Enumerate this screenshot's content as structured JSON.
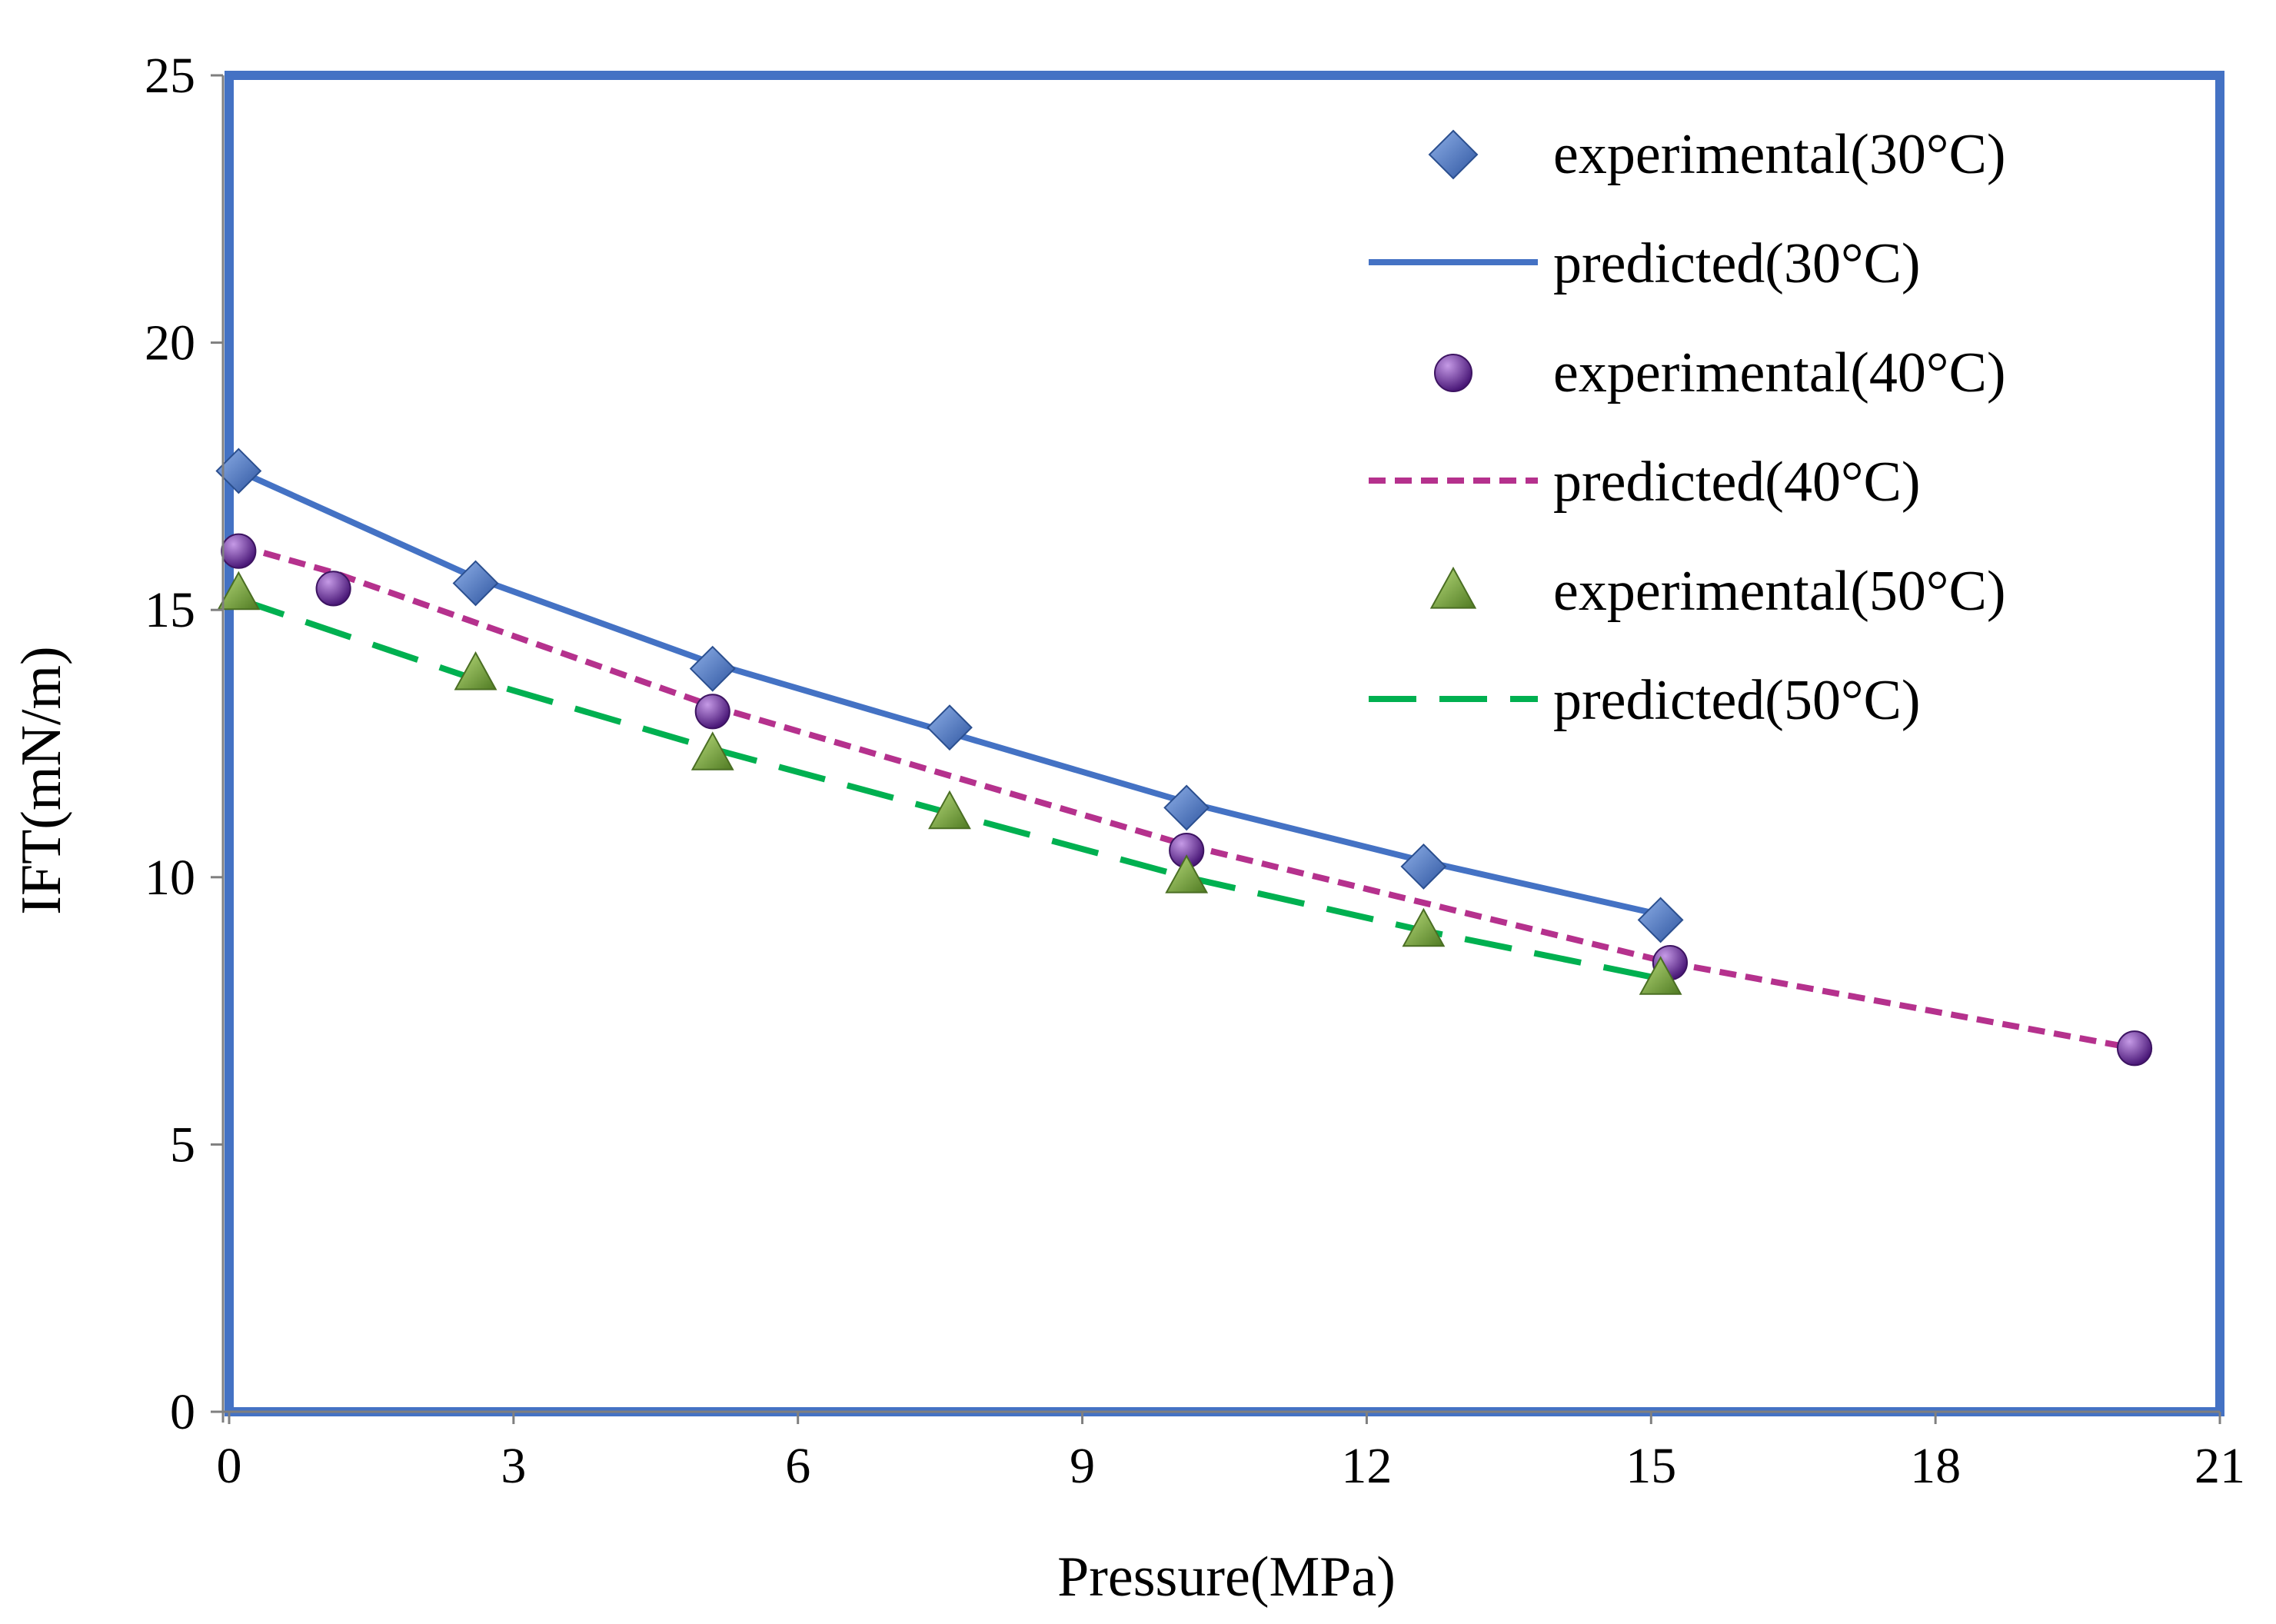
{
  "chart_data": {
    "type": "line",
    "title": "",
    "xlabel": "Pressure(MPa)",
    "ylabel": "IFT(mN/m)",
    "xlim": [
      0,
      21
    ],
    "ylim": [
      0,
      25
    ],
    "x_ticks": [
      0,
      3,
      6,
      9,
      12,
      15,
      18,
      21
    ],
    "y_ticks": [
      0,
      5,
      10,
      15,
      20,
      25
    ],
    "x_tick_labels": [
      "0",
      "3",
      "6",
      "9",
      "12",
      "15",
      "18",
      "21"
    ],
    "y_tick_labels": [
      "0",
      "5",
      "10",
      "15",
      "20",
      "25"
    ],
    "grid": false,
    "legend_position": "top-right",
    "series": [
      {
        "name": "experimental(30°C)",
        "kind": "markers",
        "marker": "diamond",
        "color": "#4472C4",
        "x": [
          0.1,
          2.6,
          5.1,
          7.6,
          10.1,
          12.6,
          15.1
        ],
        "y": [
          17.6,
          15.5,
          13.9,
          12.8,
          11.3,
          10.2,
          9.2
        ]
      },
      {
        "name": "predicted(30°C)",
        "kind": "line",
        "dash": "solid",
        "color": "#4472C4",
        "x": [
          0.1,
          2.6,
          5.1,
          7.6,
          10.1,
          12.6,
          15.1
        ],
        "y": [
          17.6,
          15.6,
          14.0,
          12.7,
          11.4,
          10.3,
          9.3
        ]
      },
      {
        "name": "experimental(40°C)",
        "kind": "markers",
        "marker": "circle",
        "color": "#7030A0",
        "x": [
          0.1,
          1.1,
          5.1,
          10.1,
          15.2,
          20.1
        ],
        "y": [
          16.1,
          15.4,
          13.1,
          10.5,
          8.4,
          6.8
        ]
      },
      {
        "name": "predicted(40°C)",
        "kind": "line",
        "dash": "dotted",
        "color": "#B5318D",
        "x": [
          0.1,
          1.1,
          5.1,
          10.1,
          15.2,
          20.1
        ],
        "y": [
          16.2,
          15.7,
          13.2,
          10.6,
          8.4,
          6.8
        ]
      },
      {
        "name": "experimental(50°C)",
        "kind": "markers",
        "marker": "triangle",
        "color": "#77A23C",
        "x": [
          0.1,
          2.6,
          5.1,
          7.6,
          10.1,
          12.6,
          15.1
        ],
        "y": [
          15.3,
          13.8,
          12.3,
          11.2,
          10.0,
          9.0,
          8.1
        ]
      },
      {
        "name": "predicted(50°C)",
        "kind": "line",
        "dash": "dashed",
        "color": "#00B050",
        "x": [
          0.1,
          2.6,
          5.1,
          7.6,
          10.1,
          12.6,
          15.1
        ],
        "y": [
          15.2,
          13.7,
          12.4,
          11.2,
          10.0,
          9.0,
          8.1
        ]
      }
    ]
  }
}
